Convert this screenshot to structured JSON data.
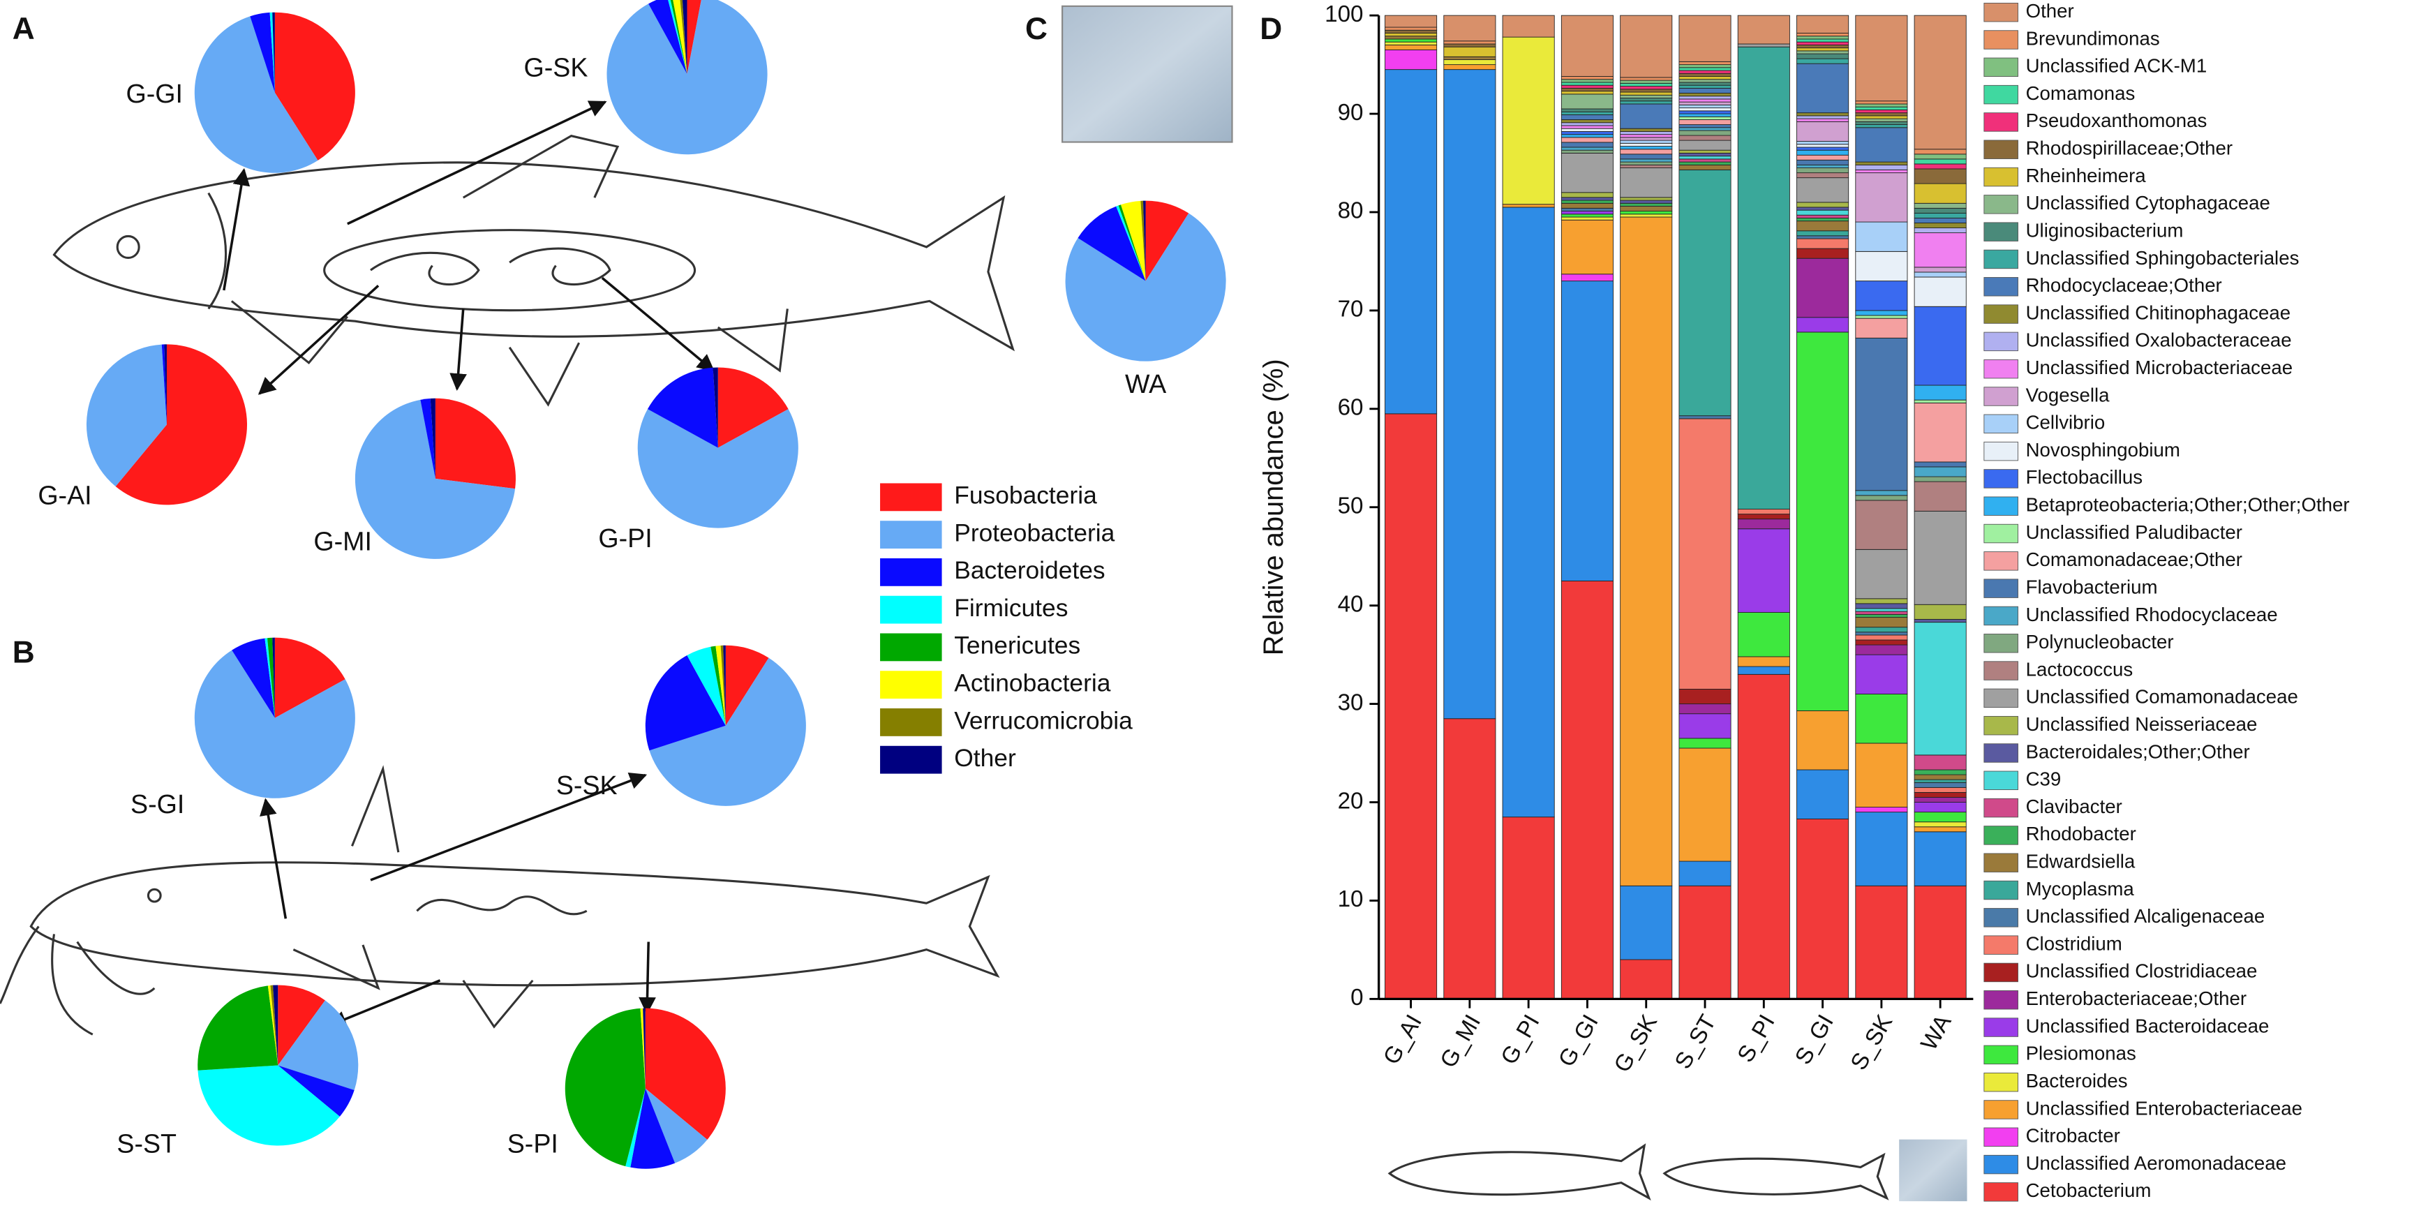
{
  "panels": [
    "A",
    "B",
    "C",
    "D"
  ],
  "chart_data": [
    {
      "type": "pie",
      "categories": [
        "Fusobacteria",
        "Proteobacteria",
        "Bacteroidetes",
        "Firmicutes",
        "Tenericutes",
        "Actinobacteria",
        "Verrucomicrobia",
        "Other"
      ],
      "colors": [
        "#ff1a1a",
        "#66aaf5",
        "#0a0aff",
        "#00ffff",
        "#00a800",
        "#ffff00",
        "#857f00",
        "#000080"
      ],
      "pies": [
        {
          "label": "G-GI",
          "values": [
            41,
            54,
            4,
            0.5,
            0,
            0,
            0,
            0.5
          ]
        },
        {
          "label": "G-SK",
          "values": [
            3,
            89,
            4,
            0.5,
            0.5,
            1.5,
            0.5,
            1
          ]
        },
        {
          "label": "G-AI",
          "values": [
            61,
            38,
            0.5,
            0,
            0,
            0,
            0,
            0.5
          ]
        },
        {
          "label": "G-MI",
          "values": [
            27,
            70,
            2,
            0,
            0,
            0,
            0,
            1
          ]
        },
        {
          "label": "G-PI",
          "values": [
            17,
            66,
            16,
            0,
            0,
            0,
            0,
            1
          ]
        },
        {
          "label": "WA",
          "values": [
            9,
            75,
            10,
            0.5,
            0.5,
            4,
            0.5,
            0.5
          ]
        },
        {
          "label": "S-GI",
          "values": [
            17,
            74,
            7,
            0.5,
            1,
            0,
            0,
            0.5
          ]
        },
        {
          "label": "S-SK",
          "values": [
            9,
            61,
            22,
            5,
            1,
            1,
            0.5,
            0.5
          ]
        },
        {
          "label": "S-ST",
          "values": [
            10,
            20,
            6,
            38,
            24,
            0.5,
            0.5,
            1
          ]
        },
        {
          "label": "S-PI",
          "values": [
            36,
            8,
            9,
            1,
            45,
            0.5,
            0,
            0.5
          ]
        }
      ]
    },
    {
      "type": "bar",
      "stacked": true,
      "categories": [
        "G_AI",
        "G_MI",
        "G_PI",
        "G_GI",
        "G_SK",
        "S_ST",
        "S_PI",
        "S_GI",
        "S_SK",
        "WA"
      ],
      "ylabel": "Relative abundance (%)",
      "ylim": [
        0,
        100
      ],
      "yticks": [
        0,
        10,
        20,
        30,
        40,
        50,
        60,
        70,
        80,
        90,
        100
      ],
      "series": [
        {
          "name": "Cetobacterium",
          "color": "#f23a3a",
          "values": [
            59.5,
            28.5,
            18.5,
            42.5,
            4,
            11.5,
            33,
            18.3,
            11.5,
            11.5
          ]
        },
        {
          "name": "Unclassified Aeromonadaceae",
          "color": "#2e8ce6",
          "values": [
            35,
            66,
            62,
            30.5,
            7.5,
            2.5,
            0.8,
            5,
            7.5,
            5.5
          ]
        },
        {
          "name": "Citrobacter",
          "color": "#f23ff0",
          "values": [
            2,
            0,
            0,
            0.7,
            0,
            0,
            0,
            0,
            0.5,
            0
          ]
        },
        {
          "name": "Unclassified Enterobacteriaceae",
          "color": "#f7a030",
          "values": [
            0.5,
            0.5,
            0.3,
            5.5,
            68,
            11.5,
            1,
            6,
            6.5,
            0.5
          ]
        },
        {
          "name": "Bacteroides",
          "color": "#eaea3a",
          "values": [
            0.3,
            0.5,
            17,
            0.3,
            0.3,
            0,
            0,
            0,
            0,
            0.5
          ]
        },
        {
          "name": "Plesiomonas",
          "color": "#3ee83e",
          "values": [
            0.3,
            0,
            0,
            0.3,
            0.3,
            1,
            4.5,
            38.5,
            5,
            1
          ]
        },
        {
          "name": "Unclassified Bacteroidaceae",
          "color": "#9a3ce8",
          "values": [
            0,
            0,
            0,
            0.3,
            0,
            2.5,
            8.5,
            1.5,
            4,
            1
          ]
        },
        {
          "name": "Enterobacteriaceae;Other",
          "color": "#9c2a9c",
          "values": [
            0,
            0,
            0,
            0,
            0,
            1,
            1,
            6,
            1,
            0.5
          ]
        },
        {
          "name": "Unclassified Clostridiaceae",
          "color": "#a82020",
          "values": [
            0,
            0,
            0,
            0,
            0,
            1.5,
            0.5,
            1,
            0.5,
            0.5
          ]
        },
        {
          "name": "Clostridium",
          "color": "#f47a6a",
          "values": [
            0,
            0,
            0,
            0,
            0,
            27.5,
            0.5,
            1,
            0.5,
            0.5
          ]
        },
        {
          "name": "Unclassified Alcaligenaceae",
          "color": "#4a7aa8",
          "values": [
            0,
            0,
            0,
            0.3,
            0,
            0.3,
            0,
            0.3,
            0.3,
            0.5
          ]
        },
        {
          "name": "Mycoplasma",
          "color": "#3aa89a",
          "values": [
            0,
            0,
            0,
            0,
            0,
            25,
            47,
            0.5,
            0.5,
            0.3
          ]
        },
        {
          "name": "Edwardsiella",
          "color": "#9a7a3a",
          "values": [
            0.3,
            0.3,
            0,
            0.5,
            0.5,
            0.5,
            0,
            1,
            1,
            0.5
          ]
        },
        {
          "name": "Rhodobacter",
          "color": "#3ab05a",
          "values": [
            0,
            0,
            0,
            0.3,
            0.3,
            0.3,
            0,
            0.3,
            0.3,
            0.5
          ]
        },
        {
          "name": "Clavibacter",
          "color": "#d04a8a",
          "values": [
            0,
            0,
            0,
            0,
            0,
            0.3,
            0,
            0.3,
            0.3,
            1.5
          ]
        },
        {
          "name": "C39",
          "color": "#4ad8d8",
          "values": [
            0,
            0,
            0,
            0,
            0,
            0.3,
            0,
            0.5,
            0.3,
            13.5
          ]
        },
        {
          "name": "Bacteroidales;Other;Other",
          "color": "#5a5aa0",
          "values": [
            0,
            0,
            0,
            0.3,
            0.3,
            0.3,
            0,
            0.3,
            0.5,
            0.3
          ]
        },
        {
          "name": "Unclassified Neisseriaceae",
          "color": "#a8b84a",
          "values": [
            0,
            0,
            0,
            0.5,
            0.3,
            0.3,
            0,
            0.5,
            0.5,
            1.5
          ]
        },
        {
          "name": "Unclassified Comamonadaceae",
          "color": "#a0a0a0",
          "values": [
            0,
            0,
            0,
            4,
            3,
            1,
            0.3,
            2.5,
            5,
            9.5
          ]
        },
        {
          "name": "Lactococcus",
          "color": "#b08080",
          "values": [
            0,
            0,
            0,
            0,
            0.3,
            0.5,
            0,
            0.5,
            5,
            3
          ]
        },
        {
          "name": "Polynucleobacter",
          "color": "#80a880",
          "values": [
            0,
            0,
            0,
            0.3,
            0.3,
            0.5,
            0,
            0.5,
            0.5,
            0.5
          ]
        },
        {
          "name": "Unclassified Rhodocyclaceae",
          "color": "#4aa8c8",
          "values": [
            0,
            0,
            0,
            0.3,
            0.3,
            0.3,
            0,
            0.3,
            0.5,
            1
          ]
        },
        {
          "name": "Flavobacterium",
          "color": "#4a78b0",
          "values": [
            0,
            0,
            0,
            0.5,
            0.5,
            0.3,
            0,
            0.5,
            15.5,
            0.5
          ]
        },
        {
          "name": "Comamonadaceae;Other",
          "color": "#f4a0a0",
          "values": [
            0,
            0,
            0,
            0.5,
            0.5,
            0.5,
            0,
            0.5,
            2,
            6
          ]
        },
        {
          "name": "Unclassified Paludibacter",
          "color": "#a0f0a0",
          "values": [
            0,
            0,
            0,
            0,
            0,
            0.3,
            0,
            0,
            0.3,
            0.3
          ]
        },
        {
          "name": "Betaproteobacteria;Other;Other;Other",
          "color": "#30b0f0",
          "values": [
            0,
            0,
            0,
            0.3,
            0.3,
            0.3,
            0,
            0.5,
            0.5,
            1.5
          ]
        },
        {
          "name": "Flectobacillus",
          "color": "#3a6af0",
          "values": [
            0,
            0,
            0,
            0.3,
            0,
            0.3,
            0,
            0.3,
            3,
            8
          ]
        },
        {
          "name": "Novosphingobium",
          "color": "#e8f0f8",
          "values": [
            0,
            0,
            0,
            0.3,
            0.3,
            0.3,
            0,
            0.3,
            3,
            3
          ]
        },
        {
          "name": "Cellvibrio",
          "color": "#a8d0f8",
          "values": [
            0,
            0,
            0,
            0,
            0.3,
            0.3,
            0,
            0.3,
            3,
            0.5
          ]
        },
        {
          "name": "Vogesella",
          "color": "#d0a0d0",
          "values": [
            0,
            0,
            0,
            0,
            0.3,
            0.3,
            0,
            2,
            5,
            0.5
          ]
        },
        {
          "name": "Unclassified Microbacteriaceae",
          "color": "#f080f0",
          "values": [
            0,
            0,
            0,
            0.3,
            0.3,
            0.3,
            0,
            0.3,
            0.3,
            3.5
          ]
        },
        {
          "name": "Unclassified Oxalobacteraceae",
          "color": "#b0b0f0",
          "values": [
            0,
            0,
            0,
            0.3,
            0.3,
            0.3,
            0,
            0.3,
            0.5,
            0.5
          ]
        },
        {
          "name": "Unclassified Chitinophagaceae",
          "color": "#908a30",
          "values": [
            0,
            0,
            0,
            0.3,
            0.3,
            0.3,
            0,
            0.3,
            0.3,
            0.5
          ]
        },
        {
          "name": "Rhodocyclaceae;Other",
          "color": "#4a7ab8",
          "values": [
            0,
            0,
            0,
            0.5,
            2.5,
            0.5,
            0,
            5,
            3.5,
            0.5
          ]
        },
        {
          "name": "Unclassified Sphingobacteriales",
          "color": "#3aa8a0",
          "values": [
            0,
            0,
            0,
            0.3,
            0.3,
            0.3,
            0,
            0.5,
            0.3,
            0.5
          ]
        },
        {
          "name": "Uliginosibacterium",
          "color": "#4a8a7a",
          "values": [
            0,
            0,
            0,
            0.3,
            0.3,
            0.3,
            0,
            0.5,
            0.3,
            0.5
          ]
        },
        {
          "name": "Unclassified Cytophagaceae",
          "color": "#8ab88a",
          "values": [
            0,
            0,
            0,
            1.5,
            0.3,
            0.3,
            0,
            0.3,
            0.3,
            0.5
          ]
        },
        {
          "name": "Rheinheimera",
          "color": "#d8c030",
          "values": [
            0.3,
            1,
            0,
            0.3,
            0.3,
            0.3,
            0,
            0.3,
            0.3,
            2
          ]
        },
        {
          "name": "Rhodospirillaceae;Other",
          "color": "#8a6a3a",
          "values": [
            0.3,
            0.3,
            0,
            0.3,
            0.3,
            0.3,
            0,
            0.3,
            0.3,
            1.5
          ]
        },
        {
          "name": "Pseudoxanthomonas",
          "color": "#f0307a",
          "values": [
            0,
            0,
            0,
            0.3,
            0.3,
            0.3,
            0,
            0.3,
            0.3,
            0.5
          ]
        },
        {
          "name": "Comamonas",
          "color": "#40d8a0",
          "values": [
            0,
            0,
            0,
            0.3,
            0.3,
            0.3,
            0,
            0.3,
            0.3,
            0.5
          ]
        },
        {
          "name": "Unclassified ACK-M1",
          "color": "#80c080",
          "values": [
            0,
            0,
            0,
            0.3,
            0.3,
            0.3,
            0,
            0.3,
            0.3,
            0.5
          ]
        },
        {
          "name": "Brevundimonas",
          "color": "#e89060",
          "values": [
            0.3,
            0.3,
            0,
            0.3,
            0.3,
            0.3,
            0,
            0.3,
            0.3,
            0.5
          ]
        },
        {
          "name": "Other",
          "color": "#d8906a",
          "values": [
            1.2,
            2.6,
            2.2,
            6.2,
            6.3,
            4.7,
            2.9,
            1.8,
            8.7,
            13.6
          ]
        }
      ]
    }
  ]
}
